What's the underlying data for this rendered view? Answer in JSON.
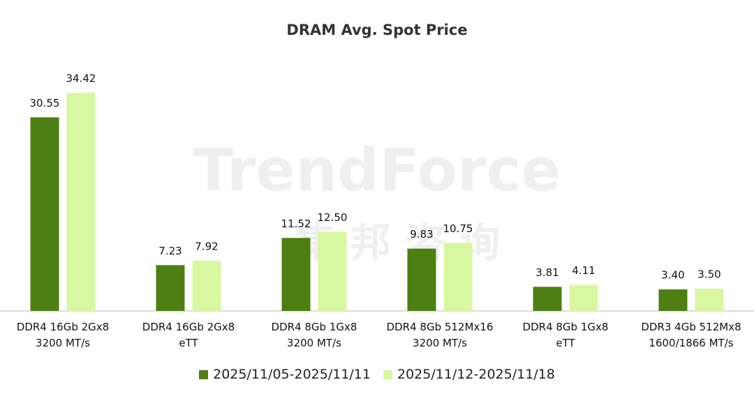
{
  "chart_data": {
    "type": "bar",
    "title": "DRAM Avg. Spot Price",
    "watermark": "TrendForce",
    "watermark_cn": "集 邦 咨 询",
    "categories": [
      "DDR4 16Gb 2Gx8\n3200 MT/s",
      "DDR4 16Gb 2Gx8\neTT",
      "DDR4 8Gb 1Gx8\n3200 MT/s",
      "DDR4 8Gb 512Mx16\n3200 MT/s",
      "DDR4 8Gb 1Gx8\neTT",
      "DDR3 4Gb 512Mx8\n1600/1866 MT/s"
    ],
    "series": [
      {
        "name": "2025/11/05-2025/11/11",
        "color": "#4d7f12",
        "values": [
          30.55,
          7.23,
          11.52,
          9.83,
          3.81,
          3.4
        ],
        "value_labels": [
          "30.55",
          "7.23",
          "11.52",
          "9.83",
          "3.81",
          "3.40"
        ]
      },
      {
        "name": "2025/11/12-2025/11/18",
        "color": "#d9f7a0",
        "values": [
          34.42,
          7.92,
          12.5,
          10.75,
          4.11,
          3.5
        ],
        "value_labels": [
          "34.42",
          "7.92",
          "12.50",
          "10.75",
          "4.11",
          "3.50"
        ]
      }
    ],
    "ylim": [
      0,
      38
    ],
    "legend": "bottom"
  }
}
